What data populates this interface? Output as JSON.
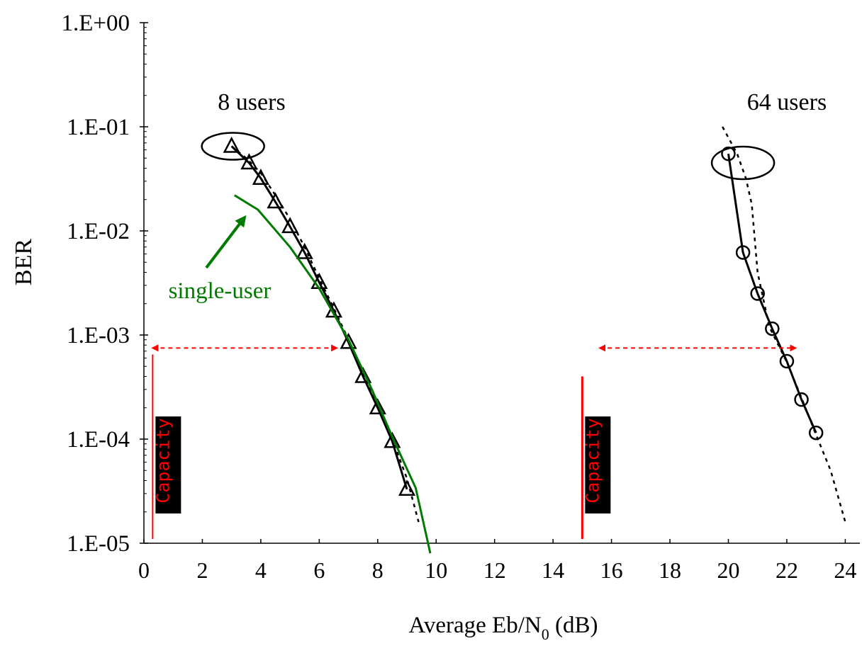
{
  "chart_data": {
    "type": "line",
    "title": "",
    "xlabel": "Average Eb/N",
    "xlabel_subscript": "0",
    "xlabel_unit": " (dB)",
    "ylabel": "BER",
    "xlim": [
      0,
      24.5
    ],
    "ylim": [
      1e-05,
      1
    ],
    "y_scale": "log",
    "grid": false,
    "x_ticks": [
      "0",
      "2",
      "4",
      "6",
      "8",
      "10",
      "12",
      "14",
      "16",
      "18",
      "20",
      "22",
      "24"
    ],
    "y_ticks": [
      "1.E+00",
      "1.E-01",
      "1.E-02",
      "1.E-03",
      "1.E-04",
      "1.E-05"
    ],
    "colors": {
      "axis": "#000000",
      "data": "#000000",
      "single_user": "#007a00",
      "capacity": "#ff0000",
      "capacity_box": "#000000"
    },
    "series": [
      {
        "key": "u8_sim",
        "style": "solid",
        "marker": "triangle",
        "x": [
          3.0,
          3.6,
          4.0,
          4.5,
          5.0,
          5.5,
          6.0,
          6.5,
          7.0,
          7.5,
          8.0,
          8.5,
          9.0
        ],
        "y": [
          0.065,
          0.045,
          0.032,
          0.019,
          0.011,
          0.0062,
          0.0032,
          0.0017,
          0.00085,
          0.0004,
          0.0002,
          9.5e-05,
          3.3e-05
        ]
      },
      {
        "key": "u8_analysis",
        "style": "dashed",
        "marker": "none",
        "x": [
          3.0,
          3.5,
          4.0,
          4.5,
          5.0,
          5.5,
          6.0,
          6.5,
          7.0,
          7.5,
          8.0,
          8.5,
          9.0,
          9.4
        ],
        "y": [
          0.065,
          0.05,
          0.036,
          0.022,
          0.013,
          0.007,
          0.0035,
          0.0018,
          0.0009,
          0.00043,
          0.00021,
          0.0001,
          4.2e-05,
          1.6e-05
        ]
      },
      {
        "key": "single_user",
        "name": "single-user",
        "style": "solid",
        "marker": "none",
        "color": "single_user",
        "x": [
          3.1,
          3.9,
          5.0,
          6.0,
          7.0,
          7.8,
          8.5,
          9.3,
          9.8
        ],
        "y": [
          0.022,
          0.016,
          0.007,
          0.0028,
          0.0009,
          0.0003,
          0.000105,
          3.4e-05,
          8e-06
        ]
      },
      {
        "key": "u64_sim",
        "style": "solid",
        "marker": "circle",
        "x": [
          20.0,
          20.5,
          21.0,
          21.5,
          22.0,
          22.5,
          23.0
        ],
        "y": [
          0.055,
          0.0062,
          0.0025,
          0.00115,
          0.00056,
          0.00024,
          0.000115
        ]
      },
      {
        "key": "u64_analysis",
        "style": "dashed",
        "marker": "none",
        "x": [
          19.8,
          20.3,
          20.6,
          20.8,
          21.0,
          21.4,
          22.0,
          22.5,
          23.0,
          23.5,
          24.0
        ],
        "y": [
          0.1,
          0.055,
          0.032,
          0.018,
          0.004,
          0.0012,
          0.00055,
          0.00025,
          0.00011,
          5e-05,
          1.6e-05
        ]
      }
    ],
    "annotations": {
      "label_8_users": "8 users",
      "label_64_users": "64 users",
      "label_single_user": "single-user",
      "capacity_label": "Capacity",
      "capacity_8_users": {
        "x": 0.3,
        "y_top": 0.00065,
        "label_ber": 0.00016
      },
      "capacity_64_users": {
        "x": 15.0,
        "y_top": 0.0004,
        "label_ber": 0.00016
      },
      "gap_arrows": [
        {
          "x1": 0.3,
          "x2": 6.6,
          "y": 0.00075
        },
        {
          "x1": 15.6,
          "x2": 22.3,
          "y": 0.00075
        }
      ]
    }
  }
}
